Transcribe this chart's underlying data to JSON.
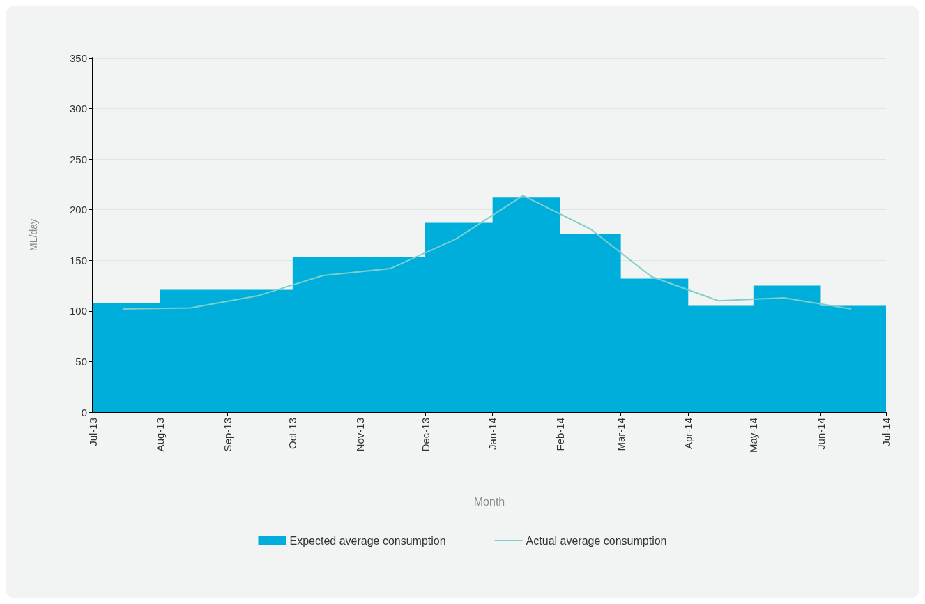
{
  "chart_data": {
    "type": "area",
    "xlabel": "Month",
    "ylabel": "ML/day",
    "xlim": [
      "2013-07",
      "2014-07"
    ],
    "xticks": [
      {
        "value": "2013-07",
        "label": "Jul-13"
      },
      {
        "value": "2013-08",
        "label": "Aug-13"
      },
      {
        "value": "2013-09",
        "label": "Sep-13"
      },
      {
        "value": "2013-10",
        "label": "Oct-13"
      },
      {
        "value": "2013-11",
        "label": "Nov-13"
      },
      {
        "value": "2013-12",
        "label": "Dec-13"
      },
      {
        "value": "2014-01",
        "label": "Jan-14"
      },
      {
        "value": "2014-02",
        "label": "Feb-14"
      },
      {
        "value": "2014-03",
        "label": "Mar-14"
      },
      {
        "value": "2014-04",
        "label": "Apr-14"
      },
      {
        "value": "2014-05",
        "label": "May-14"
      },
      {
        "value": "2014-06",
        "label": "Jun-14"
      },
      {
        "value": "2014-07",
        "label": "Jul-14"
      }
    ],
    "ylim": [
      0,
      350
    ],
    "yticks": [
      0,
      50,
      100,
      150,
      200,
      250,
      300,
      350
    ],
    "grid": "y",
    "legend": "bottom",
    "marker": "none",
    "series": [
      {
        "name": "Expected average consumption",
        "color": "#00aedb",
        "x": [
          "2013-07",
          "2013-08",
          "2013-08",
          "2013-09",
          "2013-09",
          "2013-10",
          "2013-10",
          "2013-11",
          "2013-11",
          "2013-12",
          "2013-12",
          "2014-01",
          "2014-01",
          "2014-02",
          "2014-02",
          "2014-03",
          "2014-03",
          "2014-04",
          "2014-04",
          "2014-05",
          "2014-05",
          "2014-06",
          "2014-06",
          "2014-07"
        ],
        "values": [
          108,
          108,
          121,
          121,
          121,
          121,
          153,
          153,
          153,
          153,
          187,
          187,
          212,
          212,
          176,
          176,
          132,
          132,
          105,
          105,
          125,
          125,
          105,
          105
        ]
      },
      {
        "name": "Actual average consumption",
        "type": "line",
        "color": "#7ecfcb",
        "x": [
          "2013-07-15",
          "2013-08-15",
          "2013-09-15",
          "2013-10-15",
          "2013-11-15",
          "2013-12-15",
          "2014-01-15",
          "2014-02-15",
          "2014-03-15",
          "2014-04-15",
          "2014-05-15",
          "2014-06-15"
        ],
        "values": [
          102,
          103,
          115,
          135,
          142,
          171,
          214,
          181,
          134,
          110,
          113,
          102
        ]
      }
    ]
  }
}
